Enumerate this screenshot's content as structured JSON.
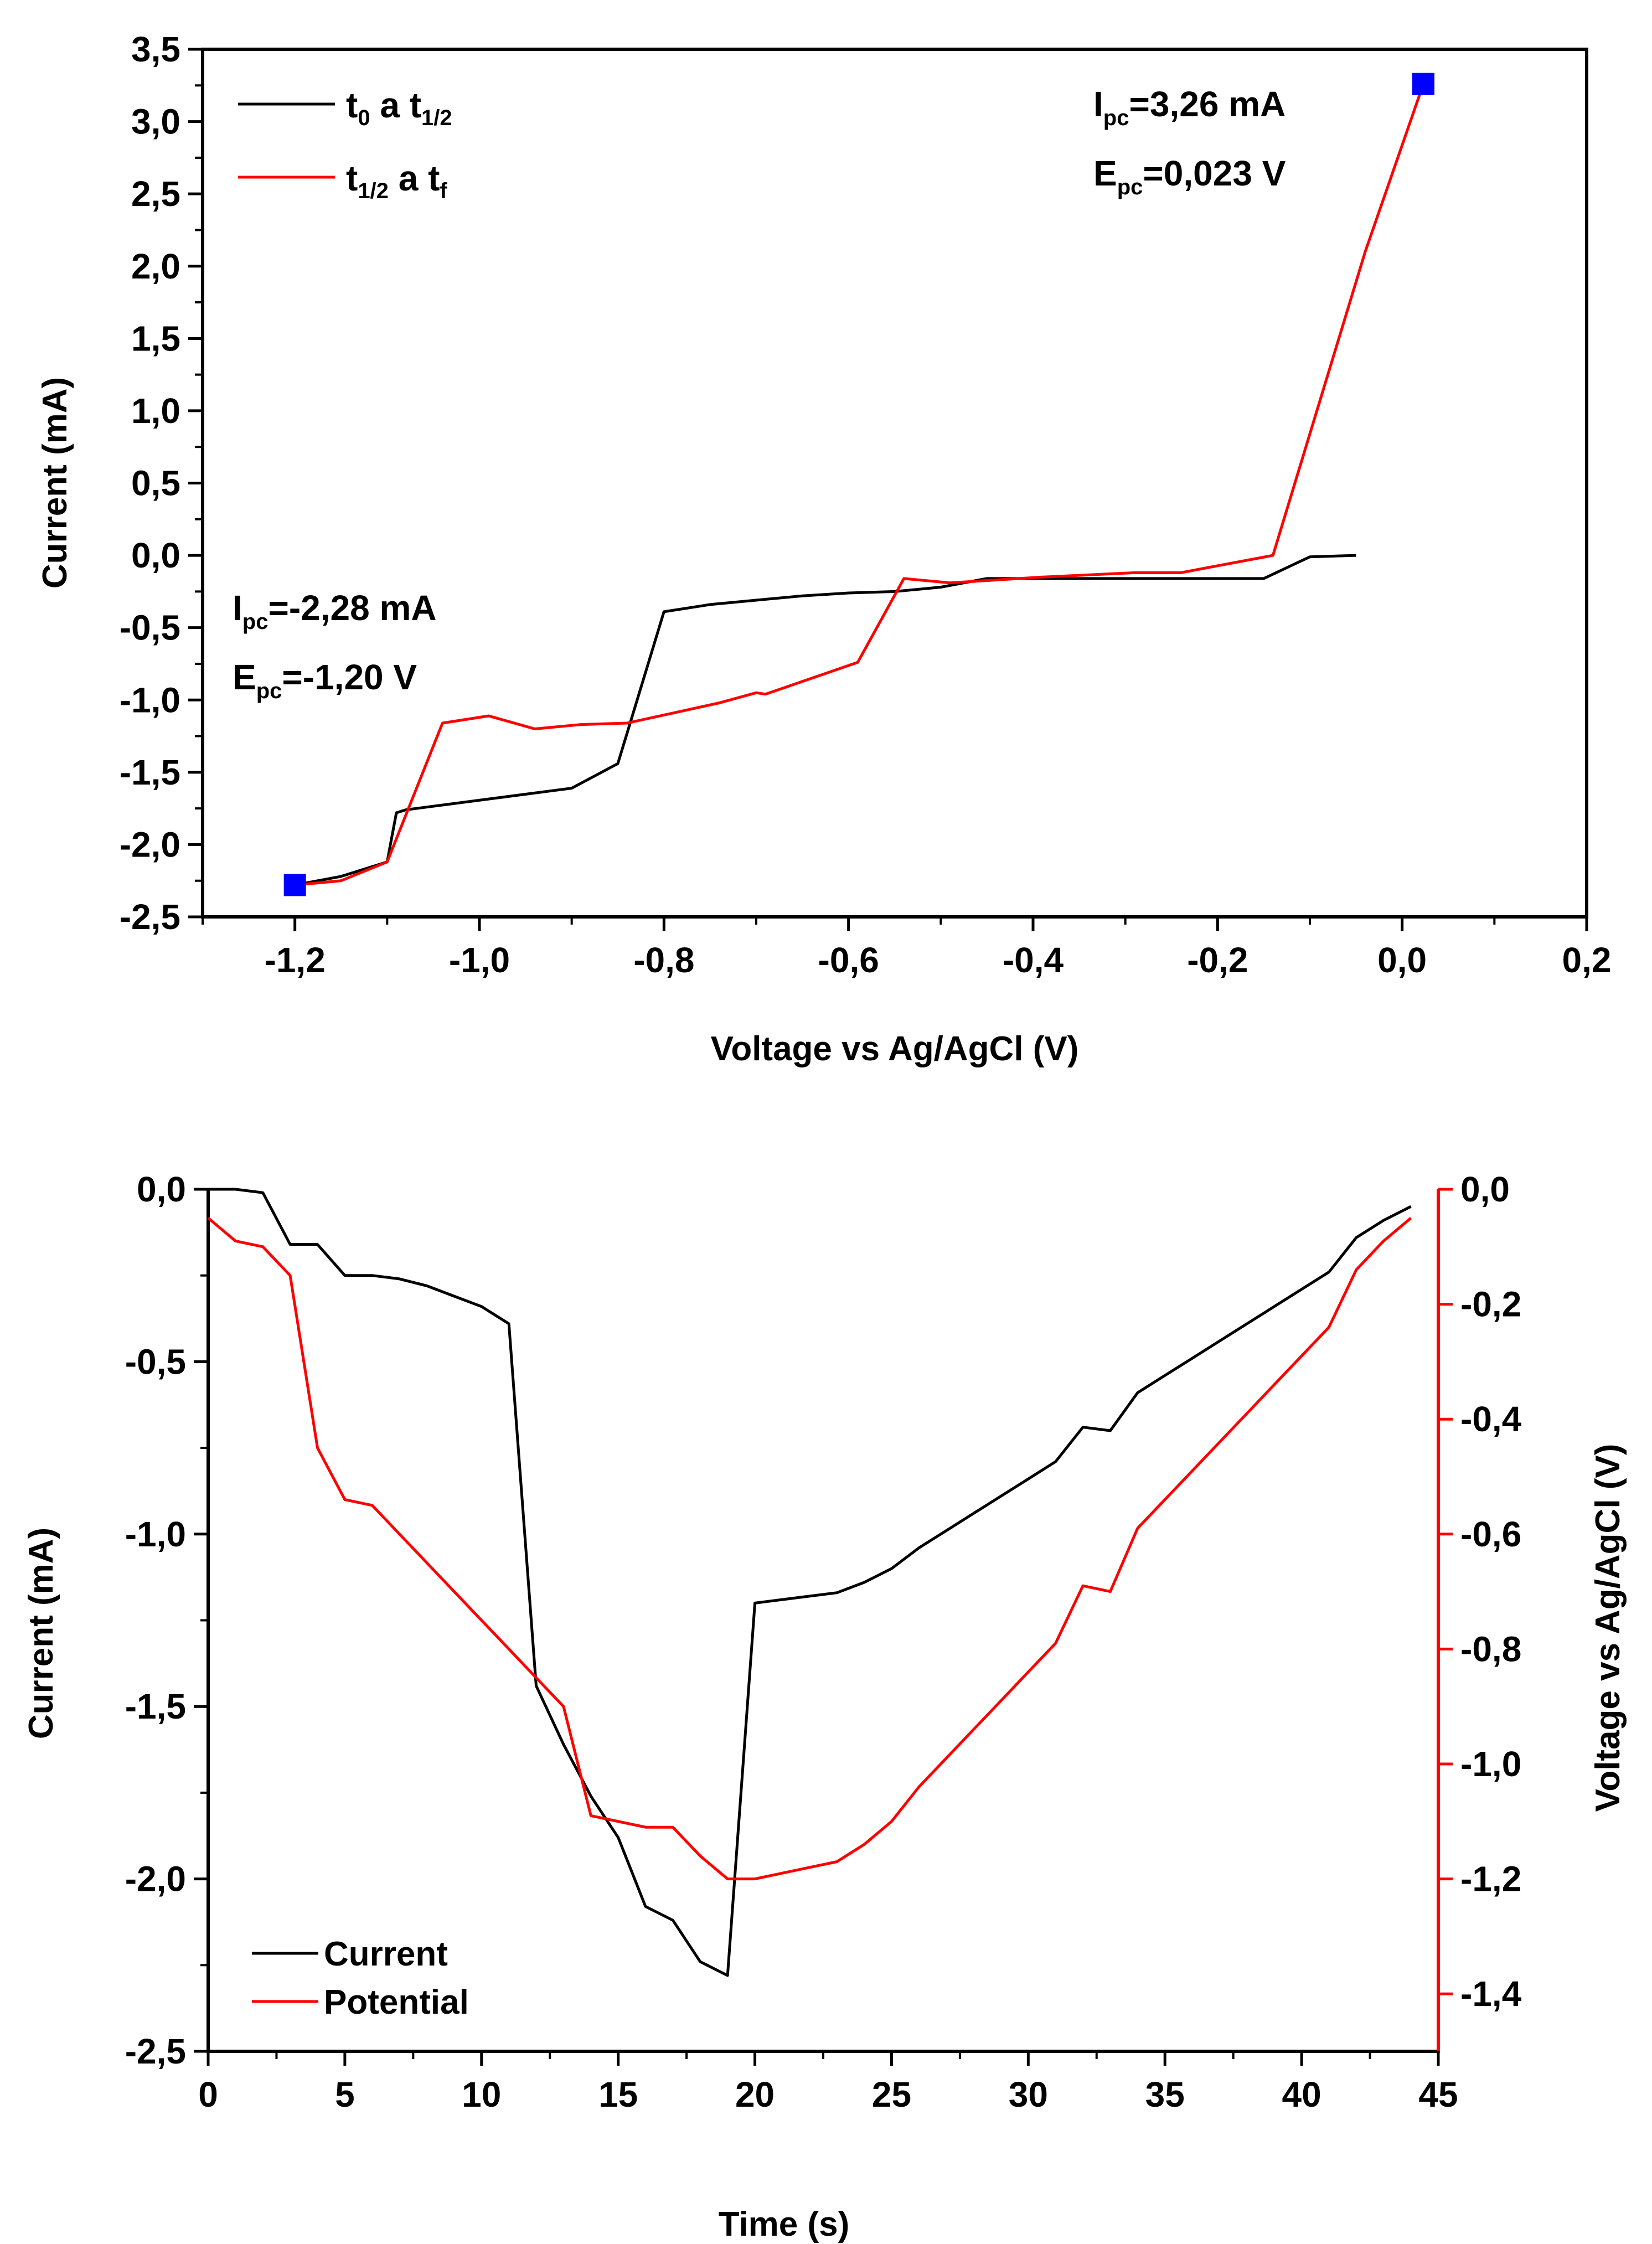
{
  "chart_data": [
    {
      "type": "line",
      "title": "",
      "xlabel": "Voltage vs Ag/AgCl (V)",
      "ylabel": "Current (mA)",
      "xlim": [
        -1.3,
        0.2
      ],
      "ylim": [
        -2.5,
        3.5
      ],
      "x_ticks": [
        -1.2,
        -1.0,
        -0.8,
        -0.6,
        -0.4,
        -0.2,
        0.0,
        0.2
      ],
      "x_tick_labels": [
        "-1,2",
        "-1,0",
        "-0,8",
        "-0,6",
        "-0,4",
        "-0,2",
        "0,0",
        "0,2"
      ],
      "y_ticks": [
        -2.5,
        -2.0,
        -1.5,
        -1.0,
        -0.5,
        0.0,
        0.5,
        1.0,
        1.5,
        2.0,
        2.5,
        3.0,
        3.5
      ],
      "y_tick_labels": [
        "-2,5",
        "-2,0",
        "-1,5",
        "-1,0",
        "-0,5",
        "0,0",
        "0,5",
        "1,0",
        "1,5",
        "2,0",
        "2,5",
        "3,0",
        "3,5"
      ],
      "legend_position": "top-left",
      "series": [
        {
          "name_main": "t",
          "name_sub1": "0",
          "name_mid": " a t",
          "name_sub2": "1/2",
          "color": "#000000",
          "x": [
            -0.05,
            -0.1,
            -0.15,
            -0.2,
            -0.25,
            -0.3,
            -0.35,
            -0.4,
            -0.45,
            -0.5,
            -0.55,
            -0.6,
            -0.65,
            -0.7,
            -0.75,
            -0.8,
            -0.85,
            -0.9,
            -1.08,
            -1.09,
            -1.1,
            -1.15,
            -1.2
          ],
          "y": [
            0.0,
            -0.01,
            -0.16,
            -0.16,
            -0.16,
            -0.16,
            -0.16,
            -0.16,
            -0.16,
            -0.22,
            -0.25,
            -0.26,
            -0.28,
            -0.31,
            -0.34,
            -0.39,
            -1.44,
            -1.61,
            -1.76,
            -1.78,
            -2.12,
            -2.22,
            -2.28
          ]
        },
        {
          "name_main": "t",
          "name_sub1": "1/2",
          "name_mid": " a t",
          "name_sub2": "f",
          "color": "#ff0000",
          "x": [
            -1.2,
            -1.15,
            -1.1,
            -1.04,
            -0.99,
            -0.94,
            -0.89,
            -0.84,
            -0.79,
            -0.74,
            -0.7,
            -0.69,
            -0.59,
            -0.54,
            -0.49,
            -0.44,
            -0.39,
            -0.29,
            -0.24,
            -0.14,
            -0.04,
            0.023
          ],
          "y": [
            -2.28,
            -2.25,
            -2.12,
            -1.16,
            -1.11,
            -1.2,
            -1.17,
            -1.16,
            -1.09,
            -1.02,
            -0.95,
            -0.96,
            -0.74,
            -0.16,
            -0.19,
            -0.17,
            -0.15,
            -0.12,
            -0.12,
            0.0,
            2.1,
            3.26
          ]
        }
      ],
      "markers": [
        {
          "x": -1.2,
          "y": -2.28,
          "color": "#0000ff"
        },
        {
          "x": 0.023,
          "y": 3.26,
          "color": "#0000ff"
        }
      ],
      "annotations": {
        "peak_high_i_label": "I",
        "peak_high_i_sub": "pc",
        "peak_high_i_value": "=3,26 mA",
        "peak_high_e_label": "E",
        "peak_high_e_sub": "pc",
        "peak_high_e_value": "=0,023 V",
        "peak_low_i_label": "I",
        "peak_low_i_sub": "pc",
        "peak_low_i_value": "=-2,28 mA",
        "peak_low_e_label": "E",
        "peak_low_e_sub": "pc",
        "peak_low_e_value": "=-1,20 V"
      }
    },
    {
      "type": "line",
      "title": "",
      "xlabel": "Time (s)",
      "ylabel": "Current (mA)",
      "ylabel_right": "Voltage vs Ag/AgCl (V)",
      "xlim": [
        0,
        45
      ],
      "ylim": [
        -2.5,
        0.0
      ],
      "ylim_right": [
        -1.5,
        0.0
      ],
      "x_ticks": [
        0,
        5,
        10,
        15,
        20,
        25,
        30,
        35,
        40,
        45
      ],
      "x_tick_labels": [
        "0",
        "5",
        "10",
        "15",
        "20",
        "25",
        "30",
        "35",
        "40",
        "45"
      ],
      "y_ticks": [
        -2.5,
        -2.0,
        -1.5,
        -1.0,
        -0.5,
        0.0
      ],
      "y_tick_labels": [
        "-2,5",
        "-2,0",
        "-1,5",
        "-1,0",
        "-0,5",
        "0,0"
      ],
      "y_right_ticks": [
        -1.4,
        -1.2,
        -1.0,
        -0.8,
        -0.6,
        -0.4,
        -0.2,
        0.0
      ],
      "y_right_tick_labels": [
        "-1,4",
        "-1,2",
        "-1,0",
        "-0,8",
        "-0,6",
        "-0,4",
        "-0,2",
        "0,0"
      ],
      "legend_position": "bottom-left",
      "series": [
        {
          "name": "Current",
          "axis": "left",
          "color": "#000000",
          "x": [
            0,
            1,
            2,
            3,
            4,
            5,
            6,
            7,
            8,
            9,
            10,
            11,
            12,
            13,
            14,
            15,
            16,
            17,
            18,
            19,
            20,
            21,
            22,
            23,
            24,
            25,
            26,
            27,
            28,
            29,
            30,
            31,
            32,
            33,
            34,
            35,
            36,
            37,
            38,
            39,
            40,
            41,
            42,
            43,
            44
          ],
          "y": [
            0.0,
            0.0,
            -0.01,
            -0.16,
            -0.16,
            -0.25,
            -0.25,
            -0.26,
            -0.28,
            -0.31,
            -0.34,
            -0.39,
            -1.44,
            -1.61,
            -1.76,
            -1.88,
            -2.08,
            -2.12,
            -2.24,
            -2.28,
            -1.2,
            -1.19,
            -1.18,
            -1.17,
            -1.14,
            -1.1,
            -1.04,
            -0.99,
            -0.94,
            -0.89,
            -0.84,
            -0.79,
            -0.69,
            -0.7,
            -0.59,
            -0.54,
            -0.49,
            -0.44,
            -0.39,
            -0.34,
            -0.29,
            -0.24,
            -0.14,
            -0.09,
            -0.05
          ]
        },
        {
          "name": "Potential",
          "axis": "right",
          "color": "#ff0000",
          "x": [
            0,
            1,
            2,
            3,
            4,
            5,
            6,
            7,
            8,
            9,
            10,
            11,
            12,
            13,
            14,
            15,
            16,
            17,
            18,
            19,
            20,
            21,
            22,
            23,
            24,
            25,
            26,
            27,
            28,
            29,
            30,
            31,
            32,
            33,
            34,
            35,
            36,
            37,
            38,
            39,
            40,
            41,
            42,
            43,
            44
          ],
          "y": [
            -0.05,
            -0.09,
            -0.1,
            -0.15,
            -0.45,
            -0.54,
            -0.55,
            -0.6,
            -0.65,
            -0.7,
            -0.75,
            -0.8,
            -0.85,
            -0.9,
            -1.09,
            -1.1,
            -1.11,
            -1.11,
            -1.16,
            -1.2,
            -1.2,
            -1.19,
            -1.18,
            -1.17,
            -1.14,
            -1.1,
            -1.04,
            -0.99,
            -0.94,
            -0.89,
            -0.84,
            -0.79,
            -0.69,
            -0.7,
            -0.59,
            -0.54,
            -0.49,
            -0.44,
            -0.39,
            -0.34,
            -0.29,
            -0.24,
            -0.14,
            -0.09,
            -0.05
          ]
        }
      ]
    }
  ]
}
